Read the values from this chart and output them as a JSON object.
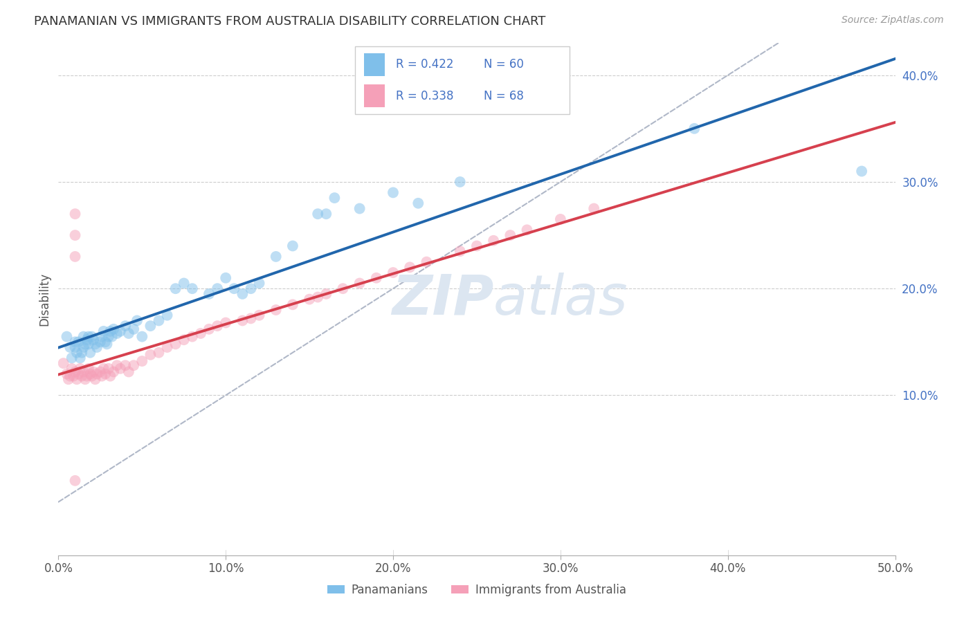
{
  "title": "PANAMANIAN VS IMMIGRANTS FROM AUSTRALIA DISABILITY CORRELATION CHART",
  "source": "Source: ZipAtlas.com",
  "xlim": [
    0.0,
    0.5
  ],
  "ylim": [
    -0.05,
    0.43
  ],
  "legend_label1": "Panamanians",
  "legend_label2": "Immigrants from Australia",
  "R1": 0.422,
  "N1": 60,
  "R2": 0.338,
  "N2": 68,
  "color1": "#7fbfea",
  "color2": "#f5a0b8",
  "line_color1": "#2166ac",
  "line_color2": "#d6404e",
  "diagonal_color": "#b0b8c8",
  "blue_x": [
    0.005,
    0.007,
    0.008,
    0.01,
    0.01,
    0.011,
    0.012,
    0.013,
    0.014,
    0.015,
    0.015,
    0.016,
    0.017,
    0.018,
    0.018,
    0.019,
    0.02,
    0.021,
    0.022,
    0.023,
    0.025,
    0.026,
    0.027,
    0.028,
    0.029,
    0.03,
    0.031,
    0.032,
    0.033,
    0.035,
    0.037,
    0.04,
    0.042,
    0.045,
    0.047,
    0.05,
    0.055,
    0.06,
    0.065,
    0.07,
    0.075,
    0.08,
    0.09,
    0.095,
    0.1,
    0.105,
    0.11,
    0.115,
    0.12,
    0.13,
    0.14,
    0.155,
    0.16,
    0.165,
    0.18,
    0.2,
    0.215,
    0.24,
    0.38,
    0.48
  ],
  "blue_y": [
    0.155,
    0.145,
    0.135,
    0.15,
    0.145,
    0.14,
    0.15,
    0.135,
    0.14,
    0.145,
    0.155,
    0.148,
    0.152,
    0.155,
    0.148,
    0.14,
    0.155,
    0.152,
    0.148,
    0.145,
    0.15,
    0.155,
    0.16,
    0.15,
    0.148,
    0.155,
    0.16,
    0.155,
    0.162,
    0.158,
    0.16,
    0.165,
    0.158,
    0.162,
    0.17,
    0.155,
    0.165,
    0.17,
    0.175,
    0.2,
    0.205,
    0.2,
    0.195,
    0.2,
    0.21,
    0.2,
    0.195,
    0.2,
    0.205,
    0.23,
    0.24,
    0.27,
    0.27,
    0.285,
    0.275,
    0.29,
    0.28,
    0.3,
    0.35,
    0.31
  ],
  "pink_x": [
    0.003,
    0.005,
    0.006,
    0.007,
    0.008,
    0.009,
    0.01,
    0.011,
    0.012,
    0.013,
    0.014,
    0.015,
    0.016,
    0.017,
    0.018,
    0.019,
    0.02,
    0.021,
    0.022,
    0.023,
    0.025,
    0.026,
    0.027,
    0.028,
    0.03,
    0.031,
    0.033,
    0.035,
    0.037,
    0.04,
    0.042,
    0.045,
    0.05,
    0.055,
    0.06,
    0.065,
    0.07,
    0.075,
    0.08,
    0.085,
    0.09,
    0.095,
    0.1,
    0.11,
    0.115,
    0.12,
    0.13,
    0.14,
    0.15,
    0.155,
    0.16,
    0.17,
    0.18,
    0.19,
    0.2,
    0.21,
    0.22,
    0.24,
    0.25,
    0.26,
    0.27,
    0.28,
    0.3,
    0.32,
    0.01,
    0.01,
    0.01,
    0.01
  ],
  "pink_y": [
    0.13,
    0.12,
    0.115,
    0.118,
    0.125,
    0.118,
    0.122,
    0.115,
    0.12,
    0.125,
    0.118,
    0.122,
    0.115,
    0.118,
    0.125,
    0.12,
    0.118,
    0.122,
    0.115,
    0.12,
    0.122,
    0.118,
    0.125,
    0.12,
    0.125,
    0.118,
    0.122,
    0.128,
    0.125,
    0.128,
    0.122,
    0.128,
    0.132,
    0.138,
    0.14,
    0.145,
    0.148,
    0.152,
    0.155,
    0.158,
    0.162,
    0.165,
    0.168,
    0.17,
    0.172,
    0.175,
    0.18,
    0.185,
    0.19,
    0.192,
    0.195,
    0.2,
    0.205,
    0.21,
    0.215,
    0.22,
    0.225,
    0.235,
    0.24,
    0.245,
    0.25,
    0.255,
    0.265,
    0.275,
    0.27,
    0.25,
    0.23,
    0.02
  ]
}
